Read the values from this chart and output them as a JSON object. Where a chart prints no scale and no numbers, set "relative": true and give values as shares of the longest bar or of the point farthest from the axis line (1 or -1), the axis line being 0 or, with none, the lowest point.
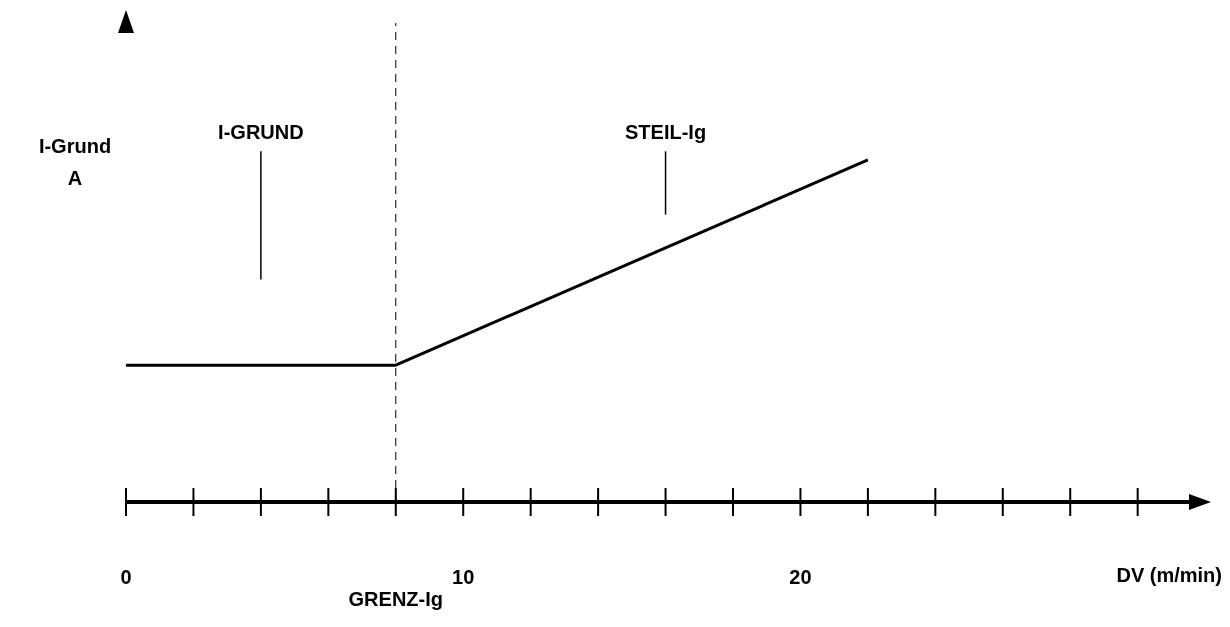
{
  "chart_data": {
    "type": "line",
    "relative": true,
    "xlabel": "DV (m/min)",
    "ylabel": "I-Grund A",
    "x": [
      0,
      8,
      22
    ],
    "series": [
      {
        "color": "#000000",
        "values": [
          0.4,
          0.4,
          1
        ]
      }
    ],
    "xlim": [
      0,
      31.7
    ],
    "xticks": [
      0,
      {
        "value": 2,
        "label": null
      },
      {
        "value": 4,
        "label": null
      },
      {
        "value": 6,
        "label": null
      },
      {
        "value": 8,
        "label": null
      },
      10,
      {
        "value": 12,
        "label": null
      },
      {
        "value": 14,
        "label": null
      },
      {
        "value": 16,
        "label": null
      },
      {
        "value": 18,
        "label": null
      },
      20,
      {
        "value": 22,
        "label": null
      },
      {
        "value": 24,
        "label": null
      },
      {
        "value": 26,
        "label": null
      },
      {
        "value": 28,
        "label": null
      },
      {
        "value": 30,
        "label": null
      }
    ],
    "ref_lines": [
      {
        "axis": "x",
        "value": 8,
        "label": "GRENZ-Ig",
        "line_style": "dashed"
      }
    ],
    "annotations": [
      "I-GRUND",
      "STEIL-Ig"
    ],
    "grid": false,
    "legend": false,
    "marker": "none",
    "line_style": "solid"
  }
}
